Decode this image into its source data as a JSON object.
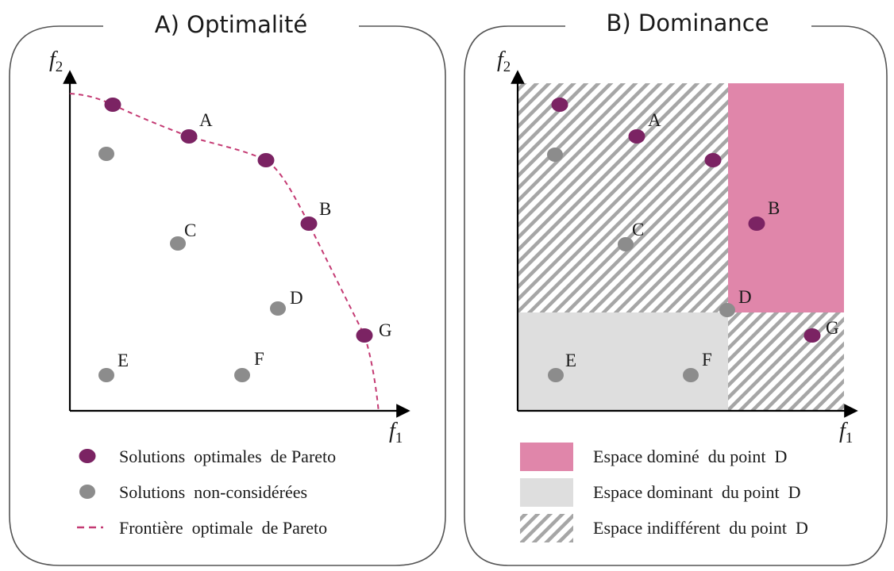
{
  "colors": {
    "optimal": "#7b2363",
    "considered": "#8c8c8c",
    "frontier": "#c43a73",
    "dominated": "#e086aa",
    "dominant": "#dedede",
    "hatch": "#a6a6a6"
  },
  "panel_a": {
    "title": "A) Optimalité",
    "x_axis": {
      "letter": "f",
      "sub": "1"
    },
    "y_axis": {
      "letter": "f",
      "sub": "2"
    },
    "points": [
      {
        "label": "",
        "kind": "optimal"
      },
      {
        "label": "A",
        "kind": "optimal"
      },
      {
        "label": "",
        "kind": "optimal"
      },
      {
        "label": "B",
        "kind": "optimal"
      },
      {
        "label": "G",
        "kind": "optimal"
      },
      {
        "label": "",
        "kind": "considered"
      },
      {
        "label": "C",
        "kind": "considered"
      },
      {
        "label": "D",
        "kind": "considered"
      },
      {
        "label": "E",
        "kind": "considered"
      },
      {
        "label": "F",
        "kind": "considered"
      }
    ],
    "legend": [
      {
        "icon": "purple-dot-icon",
        "label": "Solutions  optimales  de Pareto"
      },
      {
        "icon": "gray-dot-icon",
        "label": "Solutions  non-considérées"
      },
      {
        "icon": "dashed-line-icon",
        "label": "Frontière  optimale  de Pareto"
      }
    ]
  },
  "panel_b": {
    "title": "B) Dominance",
    "x_axis": {
      "letter": "f",
      "sub": "1"
    },
    "y_axis": {
      "letter": "f",
      "sub": "2"
    },
    "points": [
      {
        "label": "",
        "kind": "optimal"
      },
      {
        "label": "A",
        "kind": "optimal"
      },
      {
        "label": "",
        "kind": "optimal"
      },
      {
        "label": "B",
        "kind": "optimal"
      },
      {
        "label": "G",
        "kind": "optimal"
      },
      {
        "label": "",
        "kind": "considered"
      },
      {
        "label": "C",
        "kind": "considered"
      },
      {
        "label": "D",
        "kind": "considered"
      },
      {
        "label": "E",
        "kind": "considered"
      },
      {
        "label": "F",
        "kind": "considered"
      }
    ],
    "legend": [
      {
        "icon": "pink-swatch-icon",
        "label": "Espace dominé  du point  D"
      },
      {
        "icon": "gray-swatch-icon",
        "label": "Espace dominant  du point  D"
      },
      {
        "icon": "hatched-swatch-icon",
        "label": "Espace indifférent  du point  D"
      }
    ]
  }
}
